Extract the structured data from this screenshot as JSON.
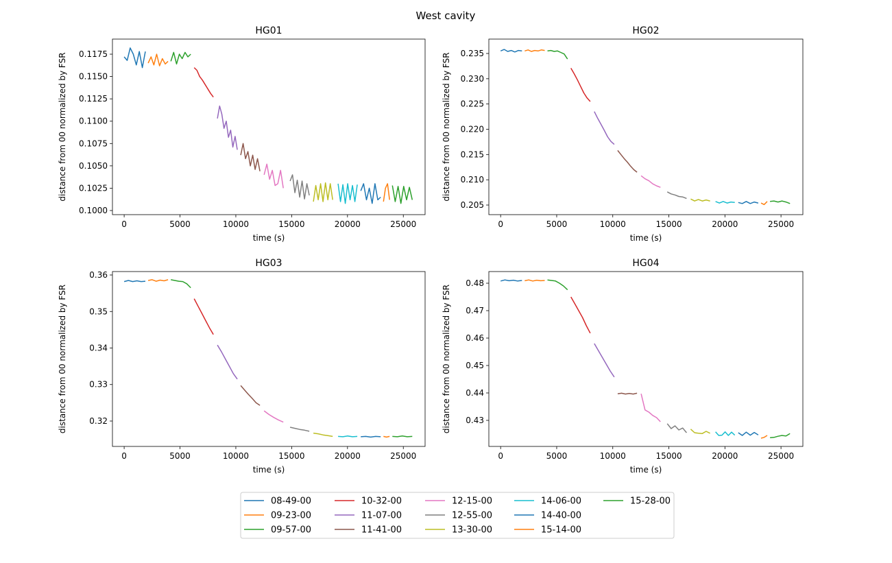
{
  "suptitle": "West cavity",
  "chart_data": {
    "type": "line",
    "title": "West cavity",
    "xlabel": "time (s)",
    "ylabel": "distance from 00 normalized by FSR",
    "xlim": [
      -1050,
      26950
    ],
    "xticks": [
      0,
      5000,
      10000,
      15000,
      20000,
      25000
    ],
    "legend_placement": "bottom-center",
    "series": [
      {
        "name": "08-49-00",
        "color": "#1f77b4",
        "t": [
          0,
          1900
        ]
      },
      {
        "name": "09-23-00",
        "color": "#ff7f0e",
        "t": [
          2150,
          3930
        ]
      },
      {
        "name": "09-57-00",
        "color": "#2ca02c",
        "t": [
          4180,
          5960
        ]
      },
      {
        "name": "10-32-00",
        "color": "#d62728",
        "t": [
          6270,
          7990
        ]
      },
      {
        "name": "11-07-00",
        "color": "#9467bd",
        "t": [
          8350,
          10130
        ]
      },
      {
        "name": "11-41-00",
        "color": "#8c564b",
        "t": [
          10440,
          12160
        ]
      },
      {
        "name": "12-15-00",
        "color": "#e377c2",
        "t": [
          12530,
          14250
        ]
      },
      {
        "name": "12-55-00",
        "color": "#7f7f7f",
        "t": [
          14860,
          16580
        ]
      },
      {
        "name": "13-30-00",
        "color": "#bcbd22",
        "t": [
          16950,
          18670
        ]
      },
      {
        "name": "14-06-00",
        "color": "#17becf",
        "t": [
          19160,
          20880
        ]
      },
      {
        "name": "14-40-00",
        "color": "#1f77b4",
        "t": [
          21190,
          22970
        ]
      },
      {
        "name": "15-14-00",
        "color": "#ff7f0e",
        "t": [
          23220,
          23770
        ]
      },
      {
        "name": "15-28-00",
        "color": "#2ca02c",
        "t": [
          24020,
          25800
        ]
      }
    ],
    "panels": [
      {
        "title": "HG01",
        "ylim": [
          0.09954,
          0.11919
        ],
        "yticks": [
          0.1,
          0.1025,
          0.105,
          0.1075,
          0.11,
          0.1125,
          0.115,
          0.1175
        ],
        "decimals": 4,
        "y": [
          [
            0.1172,
            0.1168,
            0.1182,
            0.1175,
            0.1163,
            0.1178,
            0.116,
            0.1178
          ],
          [
            0.1165,
            0.1172,
            0.1163,
            0.1175,
            0.1162,
            0.117,
            0.1164,
            0.1167
          ],
          [
            0.1167,
            0.1177,
            0.1164,
            0.1175,
            0.117,
            0.1177,
            0.1172,
            0.1175
          ],
          [
            0.116,
            0.1157,
            0.115,
            0.1146,
            0.1141,
            0.1136,
            0.1131,
            0.1127
          ],
          [
            0.1103,
            0.1117,
            0.1108,
            0.1092,
            0.11,
            0.1082,
            0.109,
            0.1071,
            0.1083,
            0.1068
          ],
          [
            0.1062,
            0.1075,
            0.1058,
            0.1066,
            0.105,
            0.1062,
            0.1046,
            0.1058,
            0.1044
          ],
          [
            0.104,
            0.1052,
            0.1035,
            0.1045,
            0.1028,
            0.103,
            0.1045,
            0.1025
          ],
          [
            0.1033,
            0.104,
            0.102,
            0.1034,
            0.1015,
            0.1033,
            0.1013,
            0.103,
            0.1017
          ],
          [
            0.101,
            0.1028,
            0.1012,
            0.103,
            0.101,
            0.1031,
            0.1012,
            0.103,
            0.1012
          ],
          [
            0.103,
            0.101,
            0.1029,
            0.1008,
            0.103,
            0.1012,
            0.1028,
            0.101,
            0.1029
          ],
          [
            0.1022,
            0.103,
            0.1012,
            0.1025,
            0.1008,
            0.103,
            0.1012,
            0.1015
          ],
          [
            0.101,
            0.1025,
            0.103,
            0.1012
          ],
          [
            0.1028,
            0.101,
            0.1027,
            0.1008,
            0.1027,
            0.1012,
            0.1026,
            0.1012
          ]
        ]
      },
      {
        "title": "HG02",
        "ylim": [
          0.2031,
          0.23785
        ],
        "yticks": [
          0.205,
          0.21,
          0.215,
          0.22,
          0.225,
          0.23,
          0.235
        ],
        "decimals": 3,
        "y": [
          [
            0.2355,
            0.2358,
            0.2354,
            0.2356,
            0.2353,
            0.2356,
            0.2355
          ],
          [
            0.2355,
            0.2357,
            0.2354,
            0.2356,
            0.2355,
            0.2357,
            0.2356
          ],
          [
            0.2355,
            0.2356,
            0.2354,
            0.2355,
            0.2352,
            0.2349,
            0.2339
          ],
          [
            0.2321,
            0.231,
            0.2298,
            0.2285,
            0.2272,
            0.2262,
            0.2255
          ],
          [
            0.2235,
            0.2222,
            0.221,
            0.2198,
            0.2185,
            0.2176,
            0.217
          ],
          [
            0.2158,
            0.215,
            0.2142,
            0.2135,
            0.2127,
            0.212,
            0.2115
          ],
          [
            0.2108,
            0.2102,
            0.2098,
            0.2092,
            0.2088,
            0.2085
          ],
          [
            0.2076,
            0.2072,
            0.207,
            0.2067,
            0.2066,
            0.2063
          ],
          [
            0.2062,
            0.2058,
            0.2061,
            0.2058,
            0.206,
            0.2058
          ],
          [
            0.2057,
            0.2054,
            0.2057,
            0.2054,
            0.2056,
            0.2055
          ],
          [
            0.2055,
            0.2053,
            0.2057,
            0.2053,
            0.2056,
            0.2054
          ],
          [
            0.2054,
            0.2051,
            0.2057
          ],
          [
            0.2057,
            0.2058,
            0.2056,
            0.2058,
            0.2056,
            0.2053
          ]
        ]
      },
      {
        "title": "HG03",
        "ylim": [
          0.31305,
          0.36094
        ],
        "yticks": [
          0.32,
          0.33,
          0.34,
          0.35,
          0.36
        ],
        "decimals": 2,
        "y": [
          [
            0.3582,
            0.3585,
            0.3582,
            0.3584,
            0.3582,
            0.3583
          ],
          [
            0.3585,
            0.3587,
            0.3583,
            0.3586,
            0.3584,
            0.3587
          ],
          [
            0.3587,
            0.3585,
            0.3583,
            0.3582,
            0.3576,
            0.3565
          ],
          [
            0.3535,
            0.3515,
            0.3495,
            0.3475,
            0.3455,
            0.3437
          ],
          [
            0.3408,
            0.339,
            0.337,
            0.335,
            0.333,
            0.3315
          ],
          [
            0.3297,
            0.3285,
            0.3273,
            0.3262,
            0.325,
            0.3243
          ],
          [
            0.3228,
            0.3218,
            0.321,
            0.3203,
            0.3197
          ],
          [
            0.3183,
            0.318,
            0.3177,
            0.3175,
            0.3172
          ],
          [
            0.3167,
            0.3165,
            0.3162,
            0.316,
            0.3158
          ],
          [
            0.3158,
            0.3157,
            0.3159,
            0.3157,
            0.3158
          ],
          [
            0.3157,
            0.3158,
            0.3156,
            0.3158,
            0.3157
          ],
          [
            0.3158,
            0.3156,
            0.3158
          ],
          [
            0.3158,
            0.3157,
            0.3159,
            0.3157,
            0.3158
          ]
        ]
      },
      {
        "title": "HG04",
        "ylim": [
          0.4205,
          0.48425
        ],
        "yticks": [
          0.43,
          0.44,
          0.45,
          0.46,
          0.47,
          0.48
        ],
        "decimals": 2,
        "y": [
          [
            0.4808,
            0.4812,
            0.4809,
            0.4811,
            0.4808,
            0.481
          ],
          [
            0.4809,
            0.4812,
            0.4808,
            0.4811,
            0.4809,
            0.481
          ],
          [
            0.4812,
            0.481,
            0.4808,
            0.48,
            0.479,
            0.4776
          ],
          [
            0.475,
            0.4725,
            0.47,
            0.4675,
            0.4645,
            0.4618
          ],
          [
            0.458,
            0.4555,
            0.453,
            0.4505,
            0.448,
            0.4458
          ],
          [
            0.4397,
            0.4399,
            0.4396,
            0.4398,
            0.4396,
            0.4399
          ],
          [
            0.4397,
            0.4338,
            0.433,
            0.4318,
            0.431,
            0.4295
          ],
          [
            0.4288,
            0.427,
            0.428,
            0.4265,
            0.4272,
            0.4255
          ],
          [
            0.4268,
            0.4255,
            0.4253,
            0.4252,
            0.426,
            0.4253
          ],
          [
            0.4258,
            0.4245,
            0.4246,
            0.4258,
            0.4245,
            0.4257,
            0.4246
          ],
          [
            0.4255,
            0.4245,
            0.4257,
            0.4246,
            0.4256,
            0.4247
          ],
          [
            0.4235,
            0.4238,
            0.4245
          ],
          [
            0.4237,
            0.4238,
            0.4242,
            0.4245,
            0.4243,
            0.4252
          ]
        ]
      }
    ]
  }
}
